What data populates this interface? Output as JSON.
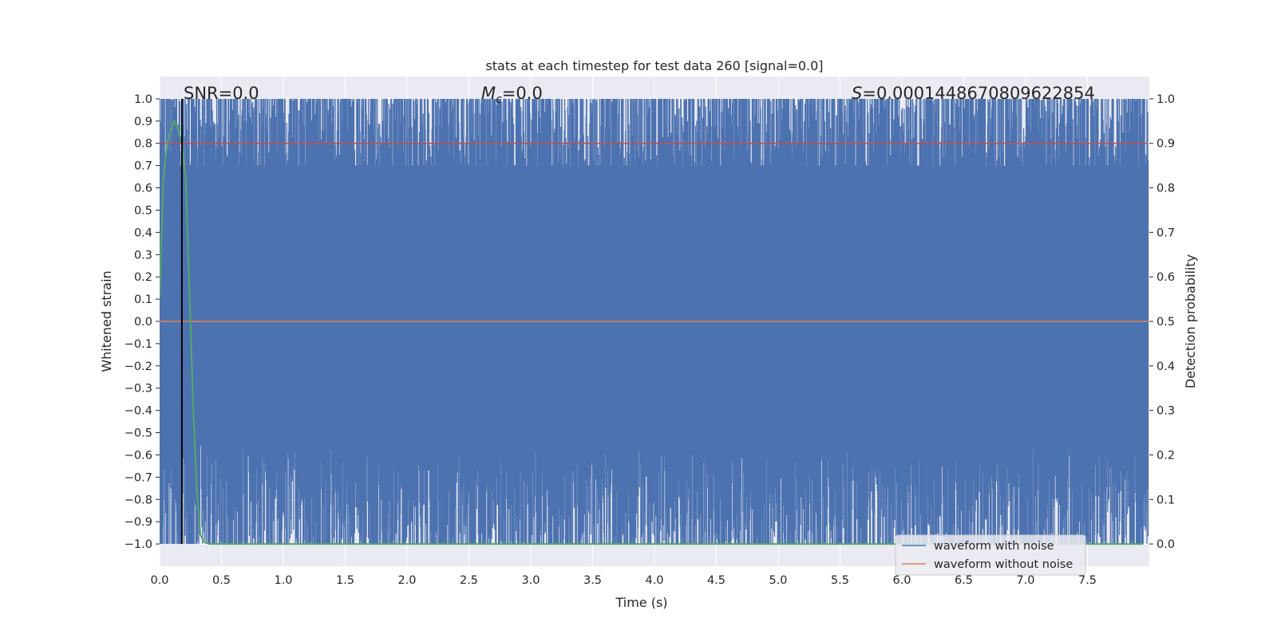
{
  "chart_data": {
    "type": "line",
    "title": "stats at each timestep for test data 260 [signal=0.0]",
    "xlabel": "Time (s)",
    "ylabel_left": "Whitened strain",
    "ylabel_right": "Detection probability",
    "xlim": [
      0.0,
      8.0
    ],
    "ylim_left": [
      -1.1,
      1.1
    ],
    "ylim_right": [
      -0.05,
      1.05
    ],
    "x_ticks": [
      "0.0",
      "0.5",
      "1.0",
      "1.5",
      "2.0",
      "2.5",
      "3.0",
      "3.5",
      "4.0",
      "4.5",
      "5.0",
      "5.5",
      "6.0",
      "6.5",
      "7.0",
      "7.5"
    ],
    "y_ticks_left": [
      "1.0",
      "0.9",
      "0.8",
      "0.7",
      "0.6",
      "0.5",
      "0.4",
      "0.3",
      "0.2",
      "0.1",
      "0.0",
      "−0.1",
      "−0.2",
      "−0.3",
      "−0.4",
      "−0.5",
      "−0.6",
      "−0.7",
      "−0.8",
      "−0.9",
      "−1.0"
    ],
    "y_ticks_right": [
      "1.0",
      "0.9",
      "0.8",
      "0.7",
      "0.6",
      "0.5",
      "0.4",
      "0.3",
      "0.2",
      "0.1",
      "0.0"
    ],
    "grid": true,
    "legend_position": "lower-right",
    "annotations": {
      "snr_prefix": "SNR=",
      "snr_value": "0.0",
      "mc_symbol": "M",
      "mc_sub": "c",
      "mc_value": "=0.0",
      "s_symbol": "S",
      "s_value": "=0.0001448670809622854"
    },
    "series": [
      {
        "name": "waveform with noise",
        "color": "#4c72b0",
        "axis": "left",
        "kind": "noise fills -1.0 to 1.0 range"
      },
      {
        "name": "waveform without noise",
        "color": "#dd8452",
        "axis": "left",
        "values_constant": 0.0
      },
      {
        "color": "#55a868",
        "axis": "right",
        "x": [
          0.0,
          0.03,
          0.06,
          0.09,
          0.12,
          0.15,
          0.18,
          0.21,
          0.24,
          0.27,
          0.3,
          0.33,
          0.36,
          0.4,
          7.95
        ],
        "y": [
          0.55,
          0.82,
          0.9,
          0.93,
          0.95,
          0.93,
          0.9,
          0.82,
          0.58,
          0.32,
          0.12,
          0.02,
          0.005,
          0.0,
          0.0
        ]
      }
    ],
    "threshold_line": {
      "value_right": 0.9,
      "color": "#c44e52"
    },
    "vertical_marker": {
      "x": 0.18,
      "color": "#000000"
    }
  }
}
